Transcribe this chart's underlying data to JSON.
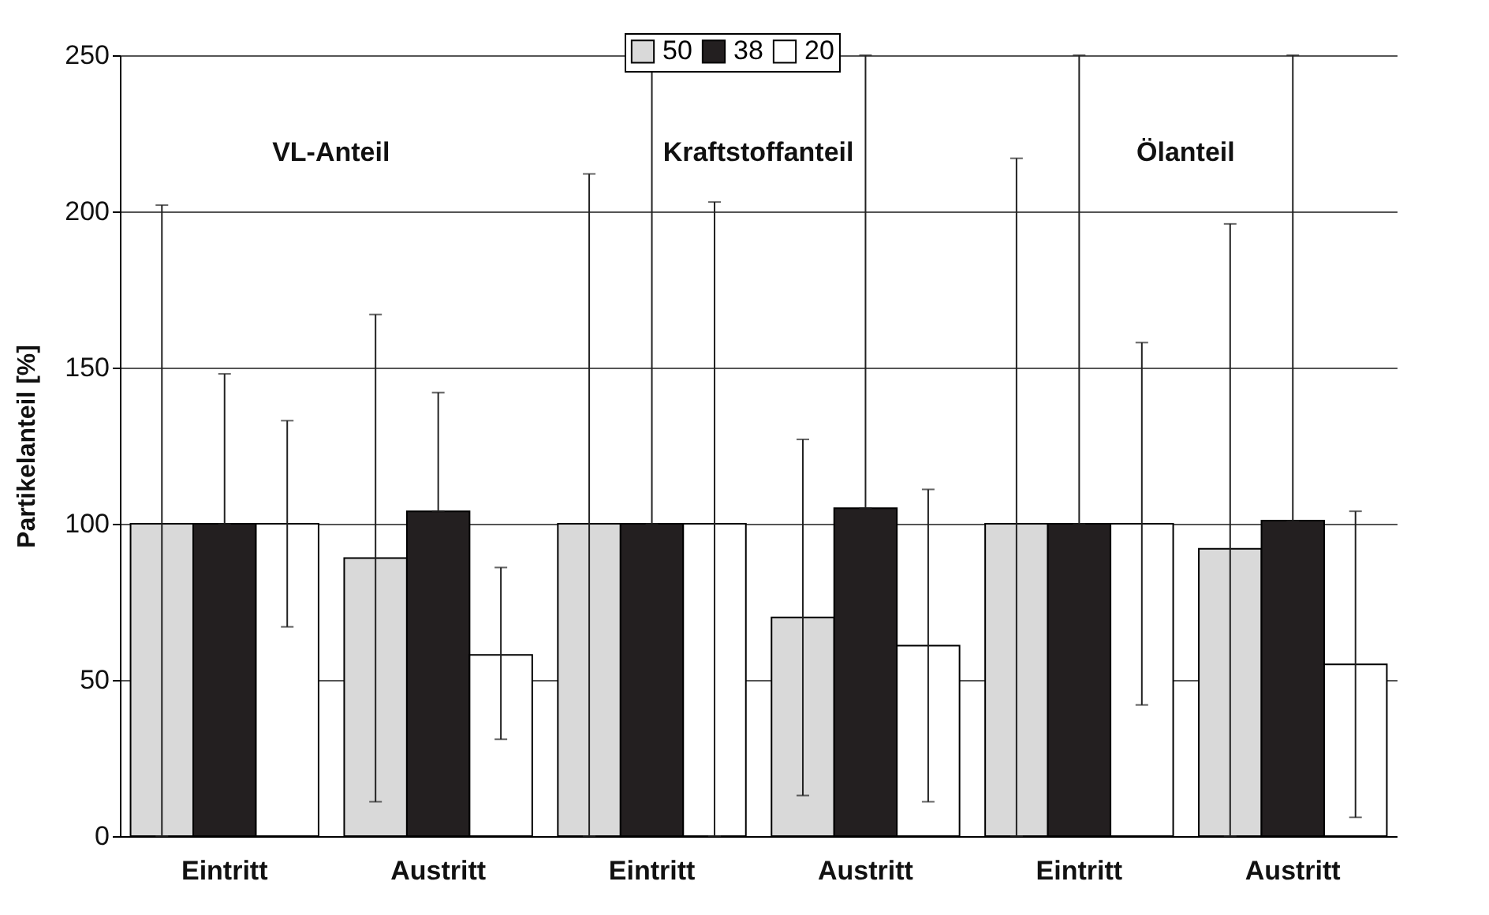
{
  "chart_data": {
    "type": "bar",
    "ylabel": "Partikelanteil [%]",
    "categories": [
      "Eintritt",
      "Austritt",
      "Eintritt",
      "Austritt",
      "Eintritt",
      "Austritt"
    ],
    "series": [
      {
        "name": "50",
        "color": "#d9d9d9",
        "values": [
          100,
          89,
          100,
          70,
          100,
          92
        ],
        "errors": [
          [
            0,
            202
          ],
          [
            11,
            167
          ],
          [
            0,
            212
          ],
          [
            13,
            127
          ],
          [
            0,
            217
          ],
          [
            0,
            196
          ]
        ]
      },
      {
        "name": "38",
        "color": "#231f20",
        "values": [
          100,
          104,
          100,
          105,
          100,
          101
        ],
        "errors": [
          [
            100,
            148
          ],
          [
            104,
            142
          ],
          [
            100,
            250
          ],
          [
            105,
            250
          ],
          [
            100,
            250
          ],
          [
            101,
            250
          ]
        ]
      },
      {
        "name": "20",
        "color": "#ffffff",
        "values": [
          100,
          58,
          100,
          61,
          100,
          55
        ],
        "errors": [
          [
            67,
            133
          ],
          [
            31,
            86
          ],
          [
            0,
            203
          ],
          [
            11,
            111
          ],
          [
            42,
            158
          ],
          [
            6,
            104
          ]
        ]
      }
    ],
    "annotations": [
      "VL-Anteil",
      "Kraftstoffanteil",
      "Ölanteil"
    ],
    "ylim": [
      0,
      250
    ],
    "yticks": [
      0,
      50,
      100,
      150,
      200,
      250
    ],
    "grid": "y",
    "legend": "top"
  }
}
